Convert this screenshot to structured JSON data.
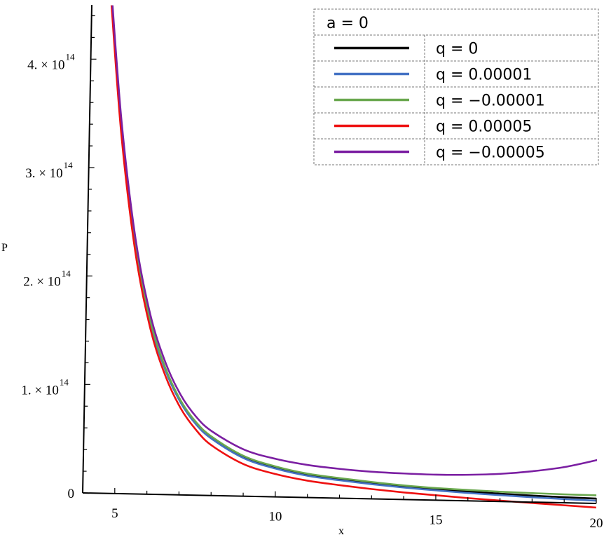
{
  "chart_data": {
    "type": "line",
    "title": "",
    "xlabel": "x",
    "ylabel": "P",
    "xlim": [
      4,
      20
    ],
    "ylim": [
      0,
      450000000000000.0
    ],
    "xticks": [
      {
        "value": 5,
        "label": "5"
      },
      {
        "value": 10,
        "label": "10"
      },
      {
        "value": 15,
        "label": "15"
      },
      {
        "value": 20,
        "label": "20"
      }
    ],
    "yticks": [
      {
        "value": 0,
        "mant": "0",
        "exp": ""
      },
      {
        "value": 100000000000000.0,
        "mant": "1. × 10",
        "exp": "14"
      },
      {
        "value": 200000000000000.0,
        "mant": "2. × 10",
        "exp": "14"
      },
      {
        "value": 300000000000000.0,
        "mant": "3. × 10",
        "exp": "14"
      },
      {
        "value": 400000000000000.0,
        "mant": "4. × 10",
        "exp": "14"
      }
    ],
    "legend": {
      "title": "a = 0",
      "placement": "top-right"
    },
    "x": [
      4.6,
      5,
      5.5,
      6,
      6.5,
      7,
      7.5,
      8,
      9,
      10,
      11,
      12,
      13,
      14,
      15,
      16,
      17,
      18,
      19,
      20
    ],
    "series": [
      {
        "name": "q = 0",
        "color": "#000000",
        "values": [
          460000000000000.0,
          336000000000000.0,
          229000000000000.0,
          160000000000000.0,
          116000000000000.0,
          86000000000000.0,
          66000000000000.0,
          53000000000000.0,
          36000000000000.0,
          27000000000000.0,
          21000000000000.0,
          17500000000000.0,
          14500000000000.0,
          12000000000000.0,
          10000000000000.0,
          8500000000000.0,
          7200000000000.0,
          6000000000000.0,
          5200000000000.0,
          4500000000000.0
        ]
      },
      {
        "name": "q = 0.00001",
        "color": "#4472c4",
        "values": [
          460000000000000.0,
          335000000000000.0,
          228000000000000.0,
          159000000000000.0,
          115000000000000.0,
          85000000000000.0,
          65000000000000.0,
          52000000000000.0,
          35000000000000.0,
          26000000000000.0,
          20000000000000.0,
          16500000000000.0,
          13500000000000.0,
          11000000000000.0,
          9000000000000.0,
          7200000000000.0,
          5800000000000.0,
          4500000000000.0,
          3400000000000.0,
          2500000000000.0
        ]
      },
      {
        "name": "q = −0.00001",
        "color": "#6aa84f",
        "values": [
          460000000000000.0,
          337000000000000.0,
          230000000000000.0,
          161000000000000.0,
          117000000000000.0,
          87000000000000.0,
          67000000000000.0,
          54000000000000.0,
          37000000000000.0,
          28000000000000.0,
          22000000000000.0,
          18500000000000.0,
          15500000000000.0,
          13000000000000.0,
          11200000000000.0,
          10000000000000.0,
          9000000000000.0,
          8300000000000.0,
          7800000000000.0,
          7500000000000.0
        ]
      },
      {
        "name": "q = 0.00005",
        "color": "#ee1111",
        "values": [
          455000000000000.0,
          330000000000000.0,
          223000000000000.0,
          154000000000000.0,
          110000000000000.0,
          80000000000000.0,
          60000000000000.0,
          46000000000000.0,
          29500000000000.0,
          21000000000000.0,
          15500000000000.0,
          12000000000000.0,
          9000000000000.0,
          6500000000000.0,
          4500000000000.0,
          2500000000000.0,
          800000000000.0,
          -800000000000.0,
          -2300000000000.0,
          -3800000000000.0
        ]
      },
      {
        "name": "q = −0.00005",
        "color": "#7b1fa2",
        "values": [
          465000000000000.0,
          342000000000000.0,
          235000000000000.0,
          166000000000000.0,
          122000000000000.0,
          92000000000000.0,
          72000000000000.0,
          59000000000000.0,
          43000000000000.0,
          35000000000000.0,
          30000000000000.0,
          27000000000000.0,
          25000000000000.0,
          24000000000000.0,
          23500000000000.0,
          24000000000000.0,
          25500000000000.0,
          28500000000000.0,
          33000000000000.0,
          40000000000000.0
        ]
      }
    ]
  }
}
